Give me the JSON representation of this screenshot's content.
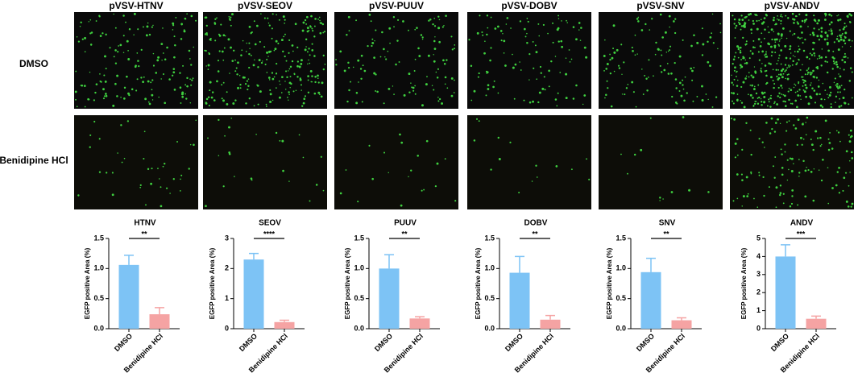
{
  "panels": {
    "columns": [
      "pVSV-HTNV",
      "pVSV-SEOV",
      "pVSV-PUUV",
      "pVSV-DOBV",
      "pVSV-SNV",
      "pVSV-ANDV"
    ],
    "rows": [
      "DMSO",
      "Benidipine HCl"
    ]
  },
  "chart_data": [
    {
      "type": "bar",
      "title": "HTNV",
      "ylabel": "EGFP positive Area (%)",
      "categories": [
        "DMSO",
        "Benidipine HCl"
      ],
      "values": [
        1.06,
        0.24
      ],
      "errors": [
        0.16,
        0.11
      ],
      "colors": [
        "#7dc3f5",
        "#f5a3a3"
      ],
      "ylim": [
        0,
        1.5
      ],
      "yticks": [
        {
          "value": 0,
          "label": "0.0"
        },
        0.5,
        {
          "value": 1,
          "label": "1.0"
        },
        1.5
      ],
      "significance": "**"
    },
    {
      "type": "bar",
      "title": "SEOV",
      "ylabel": "EGFP positive Area (%)",
      "categories": [
        "DMSO",
        "Benidipine HCl"
      ],
      "values": [
        2.3,
        0.22
      ],
      "errors": [
        0.2,
        0.06
      ],
      "colors": [
        "#7dc3f5",
        "#f5a3a3"
      ],
      "ylim": [
        0,
        3
      ],
      "yticks": [
        0,
        1,
        2,
        3
      ],
      "significance": "****"
    },
    {
      "type": "bar",
      "title": "PUUV",
      "ylabel": "EGFP positive Area (%)",
      "categories": [
        "DMSO",
        "Benidipine HCl"
      ],
      "values": [
        1.0,
        0.17
      ],
      "errors": [
        0.23,
        0.03
      ],
      "colors": [
        "#7dc3f5",
        "#f5a3a3"
      ],
      "ylim": [
        0,
        1.5
      ],
      "yticks": [
        {
          "value": 0,
          "label": "0.0"
        },
        0.5,
        {
          "value": 1,
          "label": "1.0"
        },
        1.5
      ],
      "significance": "**"
    },
    {
      "type": "bar",
      "title": "DOBV",
      "ylabel": "EGFP positive Area (%)",
      "categories": [
        "DMSO",
        "Benidipine HCl"
      ],
      "values": [
        0.93,
        0.15
      ],
      "errors": [
        0.27,
        0.07
      ],
      "colors": [
        "#7dc3f5",
        "#f5a3a3"
      ],
      "ylim": [
        0,
        1.5
      ],
      "yticks": [
        {
          "value": 0,
          "label": "0.0"
        },
        0.5,
        {
          "value": 1,
          "label": "1.0"
        },
        1.5
      ],
      "significance": "**"
    },
    {
      "type": "bar",
      "title": "SNV",
      "ylabel": "EGFP positive Area (%)",
      "categories": [
        "DMSO",
        "Benidipine HCl"
      ],
      "values": [
        0.94,
        0.14
      ],
      "errors": [
        0.23,
        0.04
      ],
      "colors": [
        "#7dc3f5",
        "#f5a3a3"
      ],
      "ylim": [
        0,
        1.5
      ],
      "yticks": [
        {
          "value": 0,
          "label": "0.0"
        },
        0.5,
        {
          "value": 1,
          "label": "1.0"
        },
        1.5
      ],
      "significance": "**"
    },
    {
      "type": "bar",
      "title": "ANDV",
      "ylabel": "EGFP positive Area (%)",
      "categories": [
        "DMSO",
        "Benidipine HCl"
      ],
      "values": [
        4.0,
        0.55
      ],
      "errors": [
        0.65,
        0.15
      ],
      "colors": [
        "#7dc3f5",
        "#f5a3a3"
      ],
      "ylim": [
        0,
        5
      ],
      "yticks": [
        0,
        1,
        2,
        3,
        4,
        5
      ],
      "significance": "***"
    }
  ]
}
